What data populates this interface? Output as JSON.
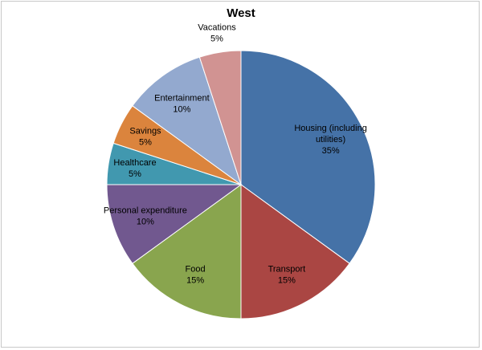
{
  "chart_data": {
    "type": "pie",
    "title": "West",
    "start_angle_deg": 0,
    "direction": "clockwise",
    "slices": [
      {
        "name": "Housing (including utilities)",
        "label_lines": [
          "Housing (including",
          "utilities)"
        ],
        "value": 35,
        "value_label": "35%",
        "color": "#4572A7"
      },
      {
        "name": "Transport",
        "label_lines": [
          "Transport"
        ],
        "value": 15,
        "value_label": "15%",
        "color": "#AA4643"
      },
      {
        "name": "Food",
        "label_lines": [
          "Food"
        ],
        "value": 15,
        "value_label": "15%",
        "color": "#89A54E"
      },
      {
        "name": "Personal expenditure",
        "label_lines": [
          "Personal expenditure"
        ],
        "value": 10,
        "value_label": "10%",
        "color": "#71588F"
      },
      {
        "name": "Healthcare",
        "label_lines": [
          "Healthcare"
        ],
        "value": 5,
        "value_label": "5%",
        "color": "#4198AF"
      },
      {
        "name": "Savings",
        "label_lines": [
          "Savings"
        ],
        "value": 5,
        "value_label": "5%",
        "color": "#DB843D"
      },
      {
        "name": "Entertainment",
        "label_lines": [
          "Entertainment"
        ],
        "value": 10,
        "value_label": "10%",
        "color": "#93A9CF"
      },
      {
        "name": "Vacations",
        "label_lines": [
          "Vacations"
        ],
        "value": 5,
        "value_label": "5%",
        "color": "#D19392"
      }
    ]
  }
}
